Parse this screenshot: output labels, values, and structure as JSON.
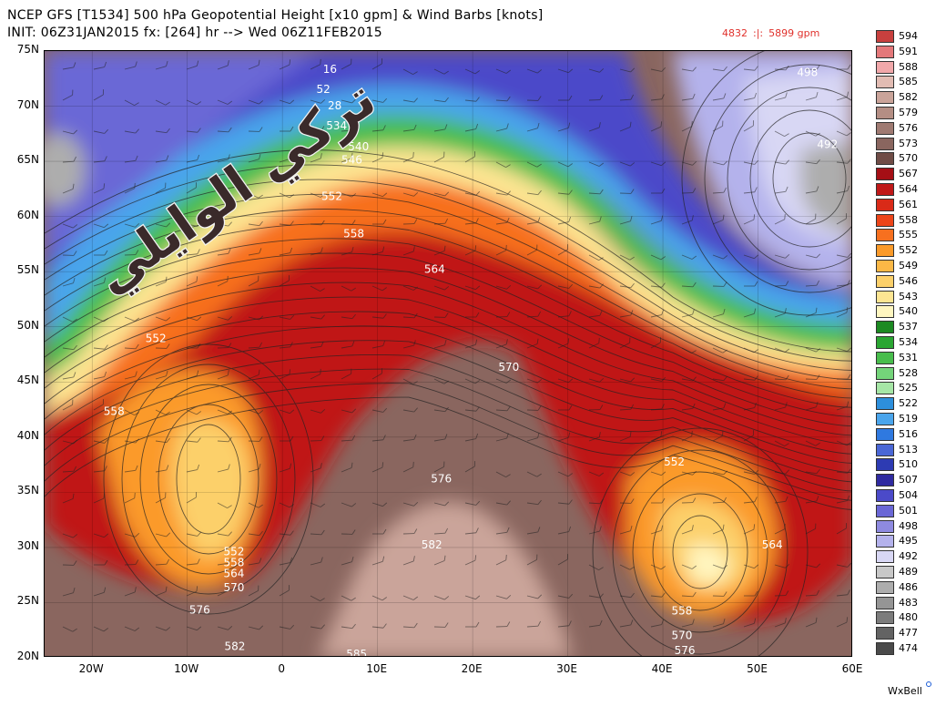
{
  "header": {
    "line1": "NCEP GFS [T1534] 500 hPa Geopotential Height [x10 gpm] & Wind Barbs [knots]",
    "line2": "INIT: 06Z31JAN2015  fx: [264] hr --> Wed 06Z11FEB2015",
    "range_min": "4832",
    "range_sep": ":|:",
    "range_max": "5899 gpm"
  },
  "map": {
    "lat_labels": [
      "75N",
      "70N",
      "65N",
      "60N",
      "55N",
      "50N",
      "45N",
      "40N",
      "35N",
      "30N",
      "25N",
      "20N"
    ],
    "lon_labels": [
      "20W",
      "10W",
      "0",
      "10E",
      "20E",
      "30E",
      "40E",
      "50E",
      "60E"
    ],
    "contour_labels": [
      {
        "text": "498",
        "lon": 55.2,
        "lat": 73.0
      },
      {
        "text": "492",
        "lon": 57.3,
        "lat": 66.5
      },
      {
        "text": "16",
        "lon": 5.0,
        "lat": 73.3
      },
      {
        "text": "52",
        "lon": 4.3,
        "lat": 71.5
      },
      {
        "text": "28",
        "lon": 5.5,
        "lat": 70.0
      },
      {
        "text": "534",
        "lon": 5.7,
        "lat": 68.2
      },
      {
        "text": "540",
        "lon": 8.0,
        "lat": 66.3
      },
      {
        "text": "546",
        "lon": 7.3,
        "lat": 65.1
      },
      {
        "text": "552",
        "lon": 5.2,
        "lat": 61.8
      },
      {
        "text": "558",
        "lon": 7.5,
        "lat": 58.4
      },
      {
        "text": "564",
        "lon": 16.0,
        "lat": 55.2
      },
      {
        "text": "552",
        "lon": -13.3,
        "lat": 48.9
      },
      {
        "text": "570",
        "lon": 23.8,
        "lat": 46.3
      },
      {
        "text": "558",
        "lon": -17.7,
        "lat": 42.3
      },
      {
        "text": "576",
        "lon": 16.7,
        "lat": 36.2
      },
      {
        "text": "552",
        "lon": 41.2,
        "lat": 37.7
      },
      {
        "text": "582",
        "lon": 15.7,
        "lat": 30.2
      },
      {
        "text": "564",
        "lon": 51.5,
        "lat": 30.2
      },
      {
        "text": "552",
        "lon": -5.1,
        "lat": 29.6
      },
      {
        "text": "558",
        "lon": -5.1,
        "lat": 28.6
      },
      {
        "text": "564",
        "lon": -5.1,
        "lat": 27.6
      },
      {
        "text": "570",
        "lon": -5.1,
        "lat": 26.3
      },
      {
        "text": "576",
        "lon": -8.7,
        "lat": 24.3
      },
      {
        "text": "558",
        "lon": 42.0,
        "lat": 24.2
      },
      {
        "text": "570",
        "lon": 42.0,
        "lat": 22.0
      },
      {
        "text": "582",
        "lon": -5.0,
        "lat": 21.0
      },
      {
        "text": "576",
        "lon": 42.3,
        "lat": 20.6
      },
      {
        "text": "585",
        "lon": 7.8,
        "lat": 20.3
      }
    ]
  },
  "colorbar": [
    {
      "label": "594",
      "color": "#c8403e"
    },
    {
      "label": "591",
      "color": "#e4787a"
    },
    {
      "label": "588",
      "color": "#f1a8aa"
    },
    {
      "label": "585",
      "color": "#e2bcb3"
    },
    {
      "label": "582",
      "color": "#caa49a"
    },
    {
      "label": "579",
      "color": "#b48e84"
    },
    {
      "label": "576",
      "color": "#9f7a72"
    },
    {
      "label": "573",
      "color": "#8a665f"
    },
    {
      "label": "570",
      "color": "#6f4c46"
    },
    {
      "label": "567",
      "color": "#a50f15"
    },
    {
      "label": "564",
      "color": "#c01818"
    },
    {
      "label": "561",
      "color": "#d92a18"
    },
    {
      "label": "558",
      "color": "#ed4519"
    },
    {
      "label": "555",
      "color": "#f7701f"
    },
    {
      "label": "552",
      "color": "#fb9a29"
    },
    {
      "label": "549",
      "color": "#fbb846"
    },
    {
      "label": "546",
      "color": "#fcd06a"
    },
    {
      "label": "543",
      "color": "#fde592"
    },
    {
      "label": "540",
      "color": "#fff6c0"
    },
    {
      "label": "537",
      "color": "#1c8a22"
    },
    {
      "label": "534",
      "color": "#2aa632"
    },
    {
      "label": "531",
      "color": "#48bd4c"
    },
    {
      "label": "528",
      "color": "#74d47a"
    },
    {
      "label": "525",
      "color": "#a6e6a6"
    },
    {
      "label": "522",
      "color": "#2d8fdc"
    },
    {
      "label": "519",
      "color": "#4aa5ec"
    },
    {
      "label": "516",
      "color": "#2f79e0"
    },
    {
      "label": "513",
      "color": "#4a67d6"
    },
    {
      "label": "510",
      "color": "#2d3bb3"
    },
    {
      "label": "507",
      "color": "#2f2aa0"
    },
    {
      "label": "504",
      "color": "#4b4ac9"
    },
    {
      "label": "501",
      "color": "#6a67d6"
    },
    {
      "label": "498",
      "color": "#8e8ae0"
    },
    {
      "label": "495",
      "color": "#b4b2ec"
    },
    {
      "label": "492",
      "color": "#d8d7f4"
    },
    {
      "label": "489",
      "color": "#c8c8c8"
    },
    {
      "label": "486",
      "color": "#adadad"
    },
    {
      "label": "483",
      "color": "#959595"
    },
    {
      "label": "480",
      "color": "#7c7c7c"
    },
    {
      "label": "477",
      "color": "#636363"
    },
    {
      "label": "474",
      "color": "#4a4a4a"
    }
  ],
  "watermark_text": "تركي الوايلي",
  "brand": "WxBell"
}
